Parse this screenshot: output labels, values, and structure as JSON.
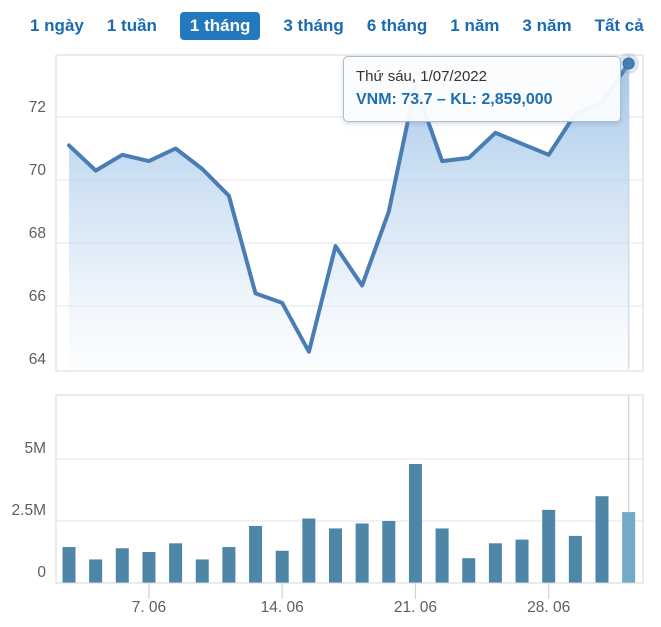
{
  "header": {
    "tabs": [
      {
        "label": "1 ngày",
        "active": false
      },
      {
        "label": "1 tuần",
        "active": false
      },
      {
        "label": "1 tháng",
        "active": true
      },
      {
        "label": "3 tháng",
        "active": false
      },
      {
        "label": "6 tháng",
        "active": false
      },
      {
        "label": "1 năm",
        "active": false
      },
      {
        "label": "3 năm",
        "active": false
      },
      {
        "label": "Tất cả",
        "active": false
      }
    ]
  },
  "tooltip": {
    "title": "Thứ sáu, 1/07/2022",
    "value": "VNM: 73.7 – KL: 2,859,000"
  },
  "chart_data": [
    {
      "type": "area",
      "name": "VNM price",
      "x": [
        "2.06",
        "3.06",
        "6.06",
        "7.06",
        "8.06",
        "9.06",
        "10.06",
        "13.06",
        "14.06",
        "15.06",
        "16.06",
        "17.06",
        "20.06",
        "21.06",
        "22.06",
        "23.06",
        "24.06",
        "27.06",
        "28.06",
        "29.06",
        "30.06",
        "1.07"
      ],
      "values": [
        71.1,
        70.3,
        70.8,
        70.6,
        71.0,
        70.35,
        69.5,
        66.4,
        66.1,
        64.55,
        67.9,
        66.65,
        69.0,
        73.0,
        70.6,
        70.7,
        71.5,
        71.15,
        70.8,
        72.1,
        72.45,
        73.7
      ],
      "yticks": [
        64,
        66,
        68,
        70,
        72
      ],
      "ylim": [
        63.9,
        74.0
      ],
      "xticks": [
        {
          "index": 3,
          "label": "7. 06"
        },
        {
          "index": 8,
          "label": "14. 06"
        },
        {
          "index": 13,
          "label": "21. 06"
        },
        {
          "index": 18,
          "label": "28. 06"
        }
      ],
      "grid": true,
      "legend": "none",
      "highlight_last_point": true
    },
    {
      "type": "bar",
      "name": "Volume (KL)",
      "x": [
        "2.06",
        "3.06",
        "6.06",
        "7.06",
        "8.06",
        "9.06",
        "10.06",
        "13.06",
        "14.06",
        "15.06",
        "16.06",
        "17.06",
        "20.06",
        "21.06",
        "22.06",
        "23.06",
        "24.06",
        "27.06",
        "28.06",
        "29.06",
        "30.06",
        "1.07"
      ],
      "values_millions": [
        1.45,
        0.95,
        1.4,
        1.25,
        1.6,
        0.95,
        1.45,
        2.3,
        1.3,
        2.6,
        2.2,
        2.4,
        2.5,
        4.8,
        2.2,
        1.0,
        1.6,
        1.75,
        2.95,
        1.9,
        3.5,
        2.86
      ],
      "yticks": [
        {
          "v": 0,
          "label": "0"
        },
        {
          "v": 2.5,
          "label": "2.5M"
        },
        {
          "v": 5,
          "label": "5M"
        }
      ],
      "ylim": [
        0,
        7.6
      ],
      "grid": true,
      "legend": "none",
      "highlight_last_bar": true
    }
  ],
  "colors": {
    "tab_text": "#1a6bb0",
    "tab_active_bg": "#2478bd",
    "tab_active_text": "#ffffff",
    "line": "#4a7db4",
    "marker_fill": "#4a7db4",
    "marker_ring": "#38699b",
    "marker_halo": "#7fa8d4",
    "area_top": "#9cc2e8",
    "area_bottom": "#f3f8fd",
    "bar": "#4e86a8",
    "bar_highlight": "#73aac9",
    "grid": "#e6e6e6",
    "plot_border": "#d7d7d7",
    "crosshair": "#c3ccd6",
    "axis_label": "#5a6065",
    "tick": "#ccd3da",
    "tooltip_border": "#a9bdd3",
    "tooltip_title_text": "#333333",
    "tooltip_value_text": "#1e6fad"
  }
}
